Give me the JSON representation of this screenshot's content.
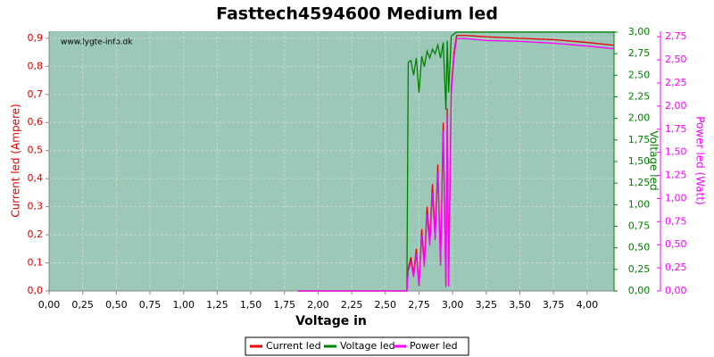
{
  "chart_data": {
    "type": "line",
    "title": "Fasttech4594600 Medium led",
    "watermark": "www.lygte-info.dk",
    "x_label": "Voltage in",
    "y_label": "Current led (Ampere)",
    "y2_label": "Voltage led",
    "y3_label": "Power led (Watt)",
    "grid": true,
    "legend": "bottom",
    "x": [
      1.85,
      2.0,
      2.25,
      2.5,
      2.66,
      2.67,
      2.69,
      2.71,
      2.73,
      2.75,
      2.77,
      2.79,
      2.81,
      2.83,
      2.85,
      2.87,
      2.89,
      2.91,
      2.93,
      2.95,
      2.96,
      2.97,
      2.99,
      3.01,
      3.03,
      3.1,
      3.25,
      3.5,
      3.75,
      4.0,
      4.2
    ],
    "series": [
      {
        "name": "Current led",
        "color": "#e8000b",
        "values": [
          0,
          0,
          0,
          0,
          0,
          0.08,
          0.12,
          0.06,
          0.15,
          0.02,
          0.22,
          0.1,
          0.3,
          0.18,
          0.38,
          0.2,
          0.45,
          0.1,
          0.6,
          0.02,
          0.65,
          0.02,
          0.72,
          0.85,
          0.91,
          0.91,
          0.905,
          0.9,
          0.895,
          0.885,
          0.875
        ]
      },
      {
        "name": "Voltage led",
        "color": "#008000",
        "axis": "y2",
        "values": [
          0,
          0,
          0,
          0,
          0,
          2.65,
          2.67,
          2.5,
          2.7,
          2.3,
          2.72,
          2.6,
          2.78,
          2.7,
          2.8,
          2.75,
          2.85,
          2.7,
          2.88,
          2.1,
          2.9,
          2.3,
          2.95,
          2.98,
          3.0,
          3.0,
          3.0,
          3.0,
          3.0,
          3.0,
          3.0
        ]
      },
      {
        "name": "Power led",
        "color": "#ff00ff",
        "axis": "y3",
        "values": [
          0,
          0,
          0,
          0,
          0,
          0.21,
          0.32,
          0.15,
          0.4,
          0.05,
          0.6,
          0.26,
          0.83,
          0.49,
          1.06,
          0.55,
          1.28,
          0.27,
          1.73,
          0.04,
          1.89,
          0.05,
          2.12,
          2.53,
          2.73,
          2.73,
          2.71,
          2.7,
          2.68,
          2.65,
          2.62
        ]
      }
    ],
    "xlim": [
      0,
      4.2
    ],
    "xticks": [
      {
        "value": 0,
        "label": "0,00"
      },
      {
        "value": 0.25,
        "label": "0,25"
      },
      {
        "value": 0.5,
        "label": "0,50"
      },
      {
        "value": 0.75,
        "label": "0,75"
      },
      {
        "value": 1,
        "label": "1,00"
      },
      {
        "value": 1.25,
        "label": "1,25"
      },
      {
        "value": 1.5,
        "label": "1,50"
      },
      {
        "value": 1.75,
        "label": "1,75"
      },
      {
        "value": 2,
        "label": "2,00"
      },
      {
        "value": 2.25,
        "label": "2,25"
      },
      {
        "value": 2.5,
        "label": "2,50"
      },
      {
        "value": 2.75,
        "label": "2,75"
      },
      {
        "value": 3,
        "label": "3,00"
      },
      {
        "value": 3.25,
        "label": "3,25"
      },
      {
        "value": 3.5,
        "label": "3,50"
      },
      {
        "value": 3.75,
        "label": "3,75"
      },
      {
        "value": 4,
        "label": "4,00"
      }
    ],
    "ylim": [
      0,
      0.925
    ],
    "yticks": [
      {
        "value": 0,
        "label": "0,0"
      },
      {
        "value": 0.1,
        "label": "0,1"
      },
      {
        "value": 0.2,
        "label": "0,2"
      },
      {
        "value": 0.3,
        "label": "0,3"
      },
      {
        "value": 0.4,
        "label": "0,4"
      },
      {
        "value": 0.5,
        "label": "0,5"
      },
      {
        "value": 0.6,
        "label": "0,6"
      },
      {
        "value": 0.7,
        "label": "0,7"
      },
      {
        "value": 0.8,
        "label": "0,8"
      },
      {
        "value": 0.9,
        "label": "0,9"
      }
    ],
    "y2lim": [
      0,
      3.01
    ],
    "y2ticks": [
      {
        "value": 0,
        "label": "0,00"
      },
      {
        "value": 0.25,
        "label": "0,25"
      },
      {
        "value": 0.5,
        "label": "0,50"
      },
      {
        "value": 0.75,
        "label": "0,75"
      },
      {
        "value": 1,
        "label": "1,00"
      },
      {
        "value": 1.25,
        "label": "1,25"
      },
      {
        "value": 1.5,
        "label": "1,50"
      },
      {
        "value": 1.75,
        "label": "1,75"
      },
      {
        "value": 2,
        "label": "2,00"
      },
      {
        "value": 2.25,
        "label": "2,25"
      },
      {
        "value": 2.5,
        "label": "2,50"
      },
      {
        "value": 2.75,
        "label": "2,75"
      },
      {
        "value": 3,
        "label": "3,00"
      }
    ],
    "y3lim": [
      0,
      2.81
    ],
    "y3ticks": [
      {
        "value": 0,
        "label": "0,00"
      },
      {
        "value": 0.25,
        "label": "0,25"
      },
      {
        "value": 0.5,
        "label": "0,50"
      },
      {
        "value": 0.75,
        "label": "0,75"
      },
      {
        "value": 1,
        "label": "1,00"
      },
      {
        "value": 1.25,
        "label": "1,25"
      },
      {
        "value": 1.5,
        "label": "1,50"
      },
      {
        "value": 1.75,
        "label": "1,75"
      },
      {
        "value": 2,
        "label": "2,00"
      },
      {
        "value": 2.25,
        "label": "2,25"
      },
      {
        "value": 2.5,
        "label": "2,50"
      },
      {
        "value": 2.75,
        "label": "2,75"
      }
    ]
  }
}
